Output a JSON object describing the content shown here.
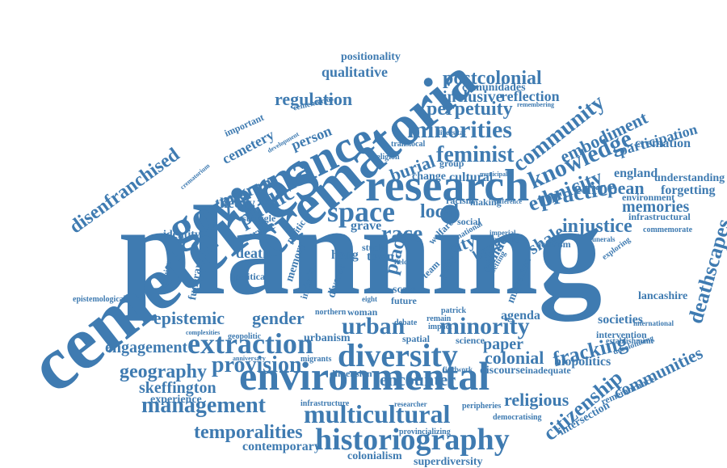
{
  "cloud": {
    "color": "#3f7bb1",
    "words": [
      "planning",
      "cemeteries",
      "crematoria",
      "governance",
      "research",
      "environmental",
      "diversity",
      "space",
      "extraction",
      "historiography",
      "multicultural",
      "urban",
      "minority",
      "minorities",
      "race",
      "knowledge",
      "community",
      "postcolonial",
      "practice",
      "deathscapes",
      "feminist",
      "management",
      "provision",
      "epistemic",
      "gender",
      "public",
      "disenfranchised",
      "citizenship",
      "communities",
      "injustice",
      "ethnicity",
      "perpetuity",
      "temporalities",
      "migrant",
      "cemetery",
      "regulation",
      "embodiment",
      "inclusive",
      "reflection",
      "qualitative",
      "positionality",
      "comunidades",
      "person",
      "burial",
      "local",
      "city",
      "shale",
      "fracking",
      "colonial",
      "paper",
      "engagement",
      "geography",
      "skeffington",
      "experience",
      "contemporary",
      "colonialism",
      "superdiversity",
      "encounter",
      "religious",
      "european",
      "memories",
      "participation",
      "cremation",
      "england",
      "understanding",
      "forgetting",
      "environment",
      "infrastructural",
      "commemorate",
      "lancashire",
      "international",
      "intersection",
      "remembrance",
      "establishment",
      "decolonising",
      "societies",
      "intervention",
      "biopolitics",
      "agenda",
      "discourse",
      "inadequate",
      "democratising",
      "peripheries",
      "researcher",
      "infrastructure",
      "provincializing",
      "fieldwork",
      "dimension",
      "migrants",
      "anniversary",
      "complexities",
      "geopolitic",
      "urbanism",
      "theory",
      "death",
      "identity",
      "epistemological",
      "funerary",
      "political",
      "feminism",
      "struggle",
      "service",
      "cultural",
      "change",
      "town",
      "future",
      "scale",
      "grave",
      "hong",
      "kong",
      "ethnic",
      "migration",
      "place",
      "diverse",
      "inclusion",
      "memory",
      "welfare",
      "activism",
      "funerals",
      "exploring",
      "important",
      "cementerios",
      "crematorium",
      "development",
      "racism",
      "making",
      "difference",
      "national",
      "municipal",
      "spatial",
      "impact",
      "science",
      "remain",
      "patrick",
      "woman",
      "northern",
      "diversitat",
      "remembering",
      "religion",
      "translocal",
      "group",
      "debate",
      "study",
      "social",
      "imperial",
      "majority",
      "politic",
      "eight",
      "field",
      "team",
      "setting",
      "policy"
    ]
  }
}
